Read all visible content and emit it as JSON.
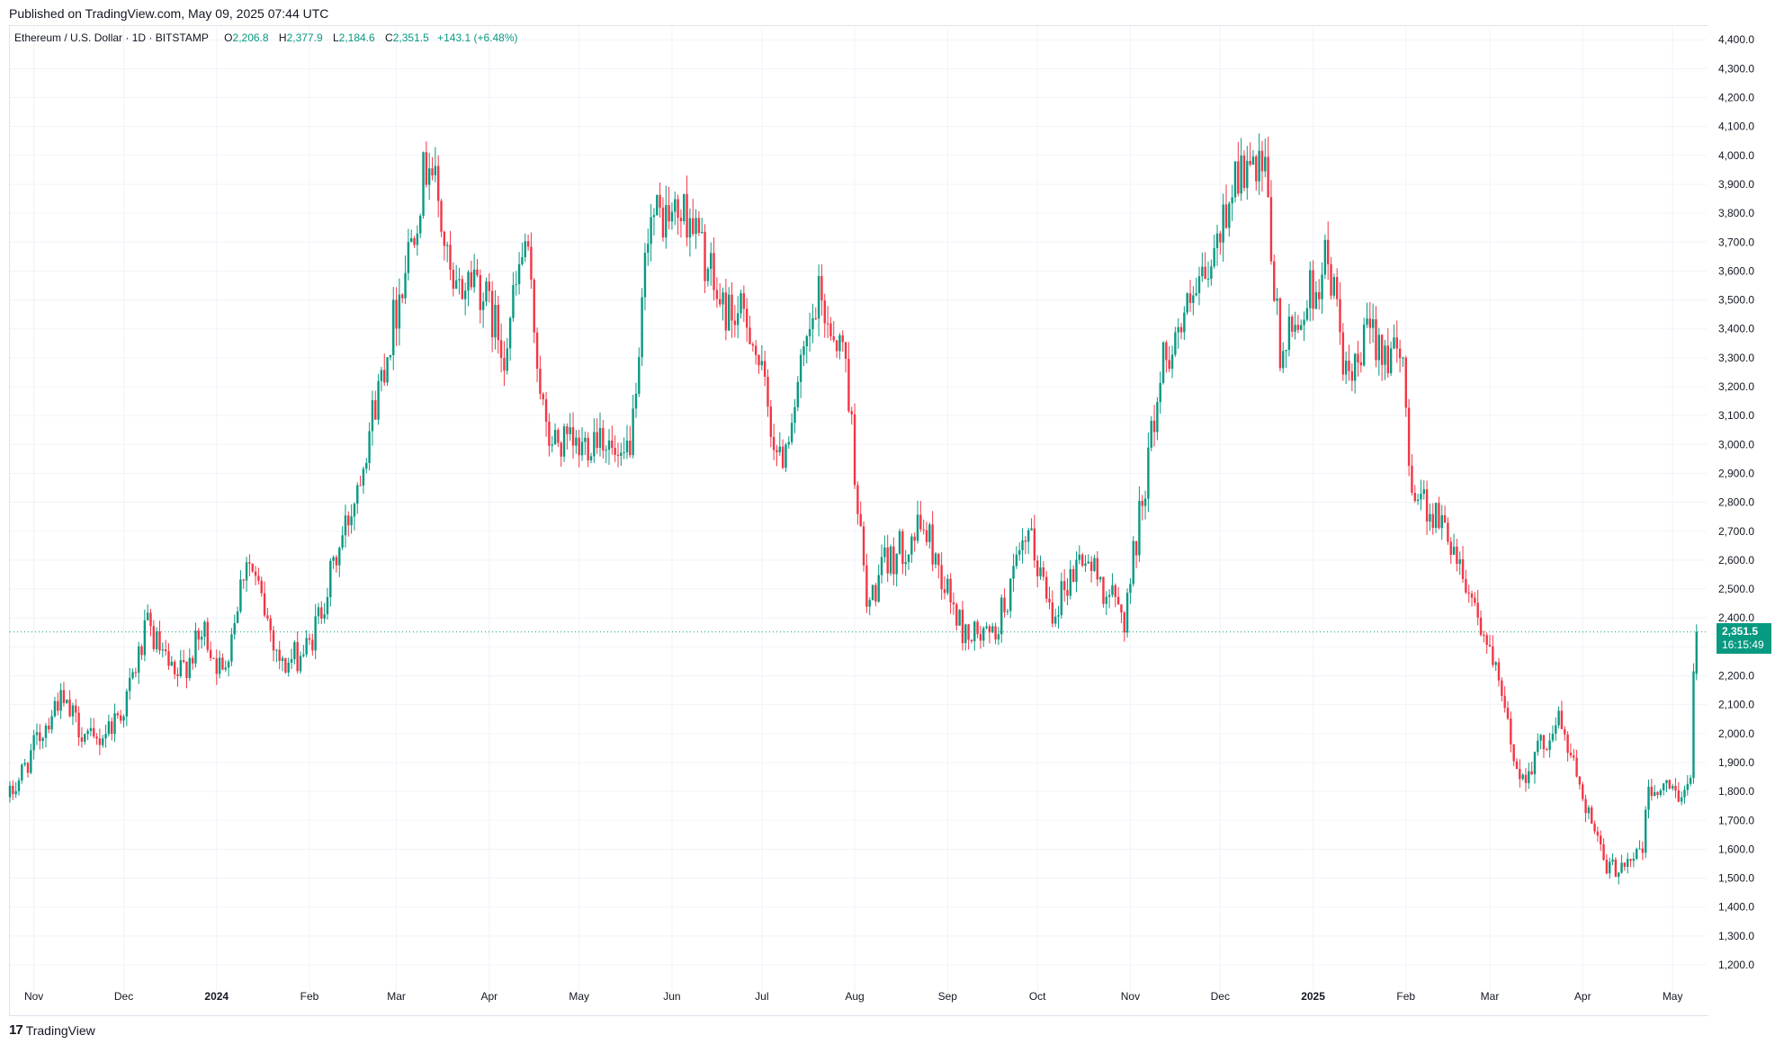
{
  "header": {
    "published": "Published on TradingView.com, May 09, 2025 07:44 UTC"
  },
  "legend": {
    "symbol": "Ethereum / U.S. Dollar · 1D · BITSTAMP",
    "open_label": "O",
    "open": "2,206.8",
    "high_label": "H",
    "high": "2,377.9",
    "low_label": "L",
    "low": "2,184.6",
    "close_label": "C",
    "close": "2,351.5",
    "change": "+143.1 (+6.48%)"
  },
  "price_badge": {
    "price": "2,351.5",
    "countdown": "16:15:49"
  },
  "footer": {
    "logo_mark": "17",
    "brand": "TradingView"
  },
  "colors": {
    "up": "#089981",
    "down": "#f23645",
    "grid": "#f0f3fa"
  },
  "chart_data": {
    "type": "candlestick",
    "title": "Ethereum / U.S. Dollar · 1D · BITSTAMP",
    "ylim": [
      1100,
      4450
    ],
    "y_ticks": [
      "1,200.0",
      "1,300.0",
      "1,400.0",
      "1,500.0",
      "1,600.0",
      "1,700.0",
      "1,800.0",
      "1,900.0",
      "2,000.0",
      "2,100.0",
      "2,200.0",
      "2,300.0",
      "2,400.0",
      "2,500.0",
      "2,600.0",
      "2,700.0",
      "2,800.0",
      "2,900.0",
      "3,000.0",
      "3,100.0",
      "3,200.0",
      "3,300.0",
      "3,400.0",
      "3,500.0",
      "3,600.0",
      "3,700.0",
      "3,800.0",
      "3,900.0",
      "4,000.0",
      "4,100.0",
      "4,200.0",
      "4,300.0",
      "4,400.0"
    ],
    "x_ticks": [
      {
        "label": "Nov",
        "date": "2023-11-01",
        "bold": false
      },
      {
        "label": "Dec",
        "date": "2023-12-01",
        "bold": false
      },
      {
        "label": "2024",
        "date": "2024-01-01",
        "bold": true
      },
      {
        "label": "Feb",
        "date": "2024-02-01",
        "bold": false
      },
      {
        "label": "Mar",
        "date": "2024-03-01",
        "bold": false
      },
      {
        "label": "Apr",
        "date": "2024-04-01",
        "bold": false
      },
      {
        "label": "May",
        "date": "2024-05-01",
        "bold": false
      },
      {
        "label": "Jun",
        "date": "2024-06-01",
        "bold": false
      },
      {
        "label": "Jul",
        "date": "2024-07-01",
        "bold": false
      },
      {
        "label": "Aug",
        "date": "2024-08-01",
        "bold": false
      },
      {
        "label": "Sep",
        "date": "2024-09-01",
        "bold": false
      },
      {
        "label": "Oct",
        "date": "2024-10-01",
        "bold": false
      },
      {
        "label": "Nov",
        "date": "2024-11-01",
        "bold": false
      },
      {
        "label": "Dec",
        "date": "2024-12-01",
        "bold": false
      },
      {
        "label": "2025",
        "date": "2025-01-01",
        "bold": true
      },
      {
        "label": "Feb",
        "date": "2025-02-01",
        "bold": false
      },
      {
        "label": "Mar",
        "date": "2025-03-01",
        "bold": false
      },
      {
        "label": "Apr",
        "date": "2025-04-01",
        "bold": false
      },
      {
        "label": "May",
        "date": "2025-05-01",
        "bold": false
      }
    ],
    "current_price": 2351.5,
    "series": [
      {
        "name": "ETH/USD",
        "approx_daily_close_path": [
          {
            "date": "2023-10-24",
            "close": 1780
          },
          {
            "date": "2023-11-09",
            "close": 2120
          },
          {
            "date": "2023-11-21",
            "close": 1960
          },
          {
            "date": "2023-12-01",
            "close": 2090
          },
          {
            "date": "2023-12-09",
            "close": 2370
          },
          {
            "date": "2023-12-18",
            "close": 2180
          },
          {
            "date": "2023-12-28",
            "close": 2350
          },
          {
            "date": "2024-01-03",
            "close": 2200
          },
          {
            "date": "2024-01-11",
            "close": 2620
          },
          {
            "date": "2024-01-23",
            "close": 2230
          },
          {
            "date": "2024-02-01",
            "close": 2300
          },
          {
            "date": "2024-02-15",
            "close": 2780
          },
          {
            "date": "2024-02-28",
            "close": 3380
          },
          {
            "date": "2024-03-12",
            "close": 4020
          },
          {
            "date": "2024-03-20",
            "close": 3500
          },
          {
            "date": "2024-03-27",
            "close": 3600
          },
          {
            "date": "2024-04-06",
            "close": 3330
          },
          {
            "date": "2024-04-13",
            "close": 3700
          },
          {
            "date": "2024-04-20",
            "close": 3020
          },
          {
            "date": "2024-05-01",
            "close": 2980
          },
          {
            "date": "2024-05-08",
            "close": 3060
          },
          {
            "date": "2024-05-15",
            "close": 2900
          },
          {
            "date": "2024-05-20",
            "close": 3100
          },
          {
            "date": "2024-05-24",
            "close": 3780
          },
          {
            "date": "2024-06-07",
            "close": 3800
          },
          {
            "date": "2024-06-17",
            "close": 3480
          },
          {
            "date": "2024-06-27",
            "close": 3420
          },
          {
            "date": "2024-07-07",
            "close": 2930
          },
          {
            "date": "2024-07-20",
            "close": 3500
          },
          {
            "date": "2024-07-29",
            "close": 3300
          },
          {
            "date": "2024-08-05",
            "close": 2430
          },
          {
            "date": "2024-08-11",
            "close": 2580
          },
          {
            "date": "2024-08-24",
            "close": 2720
          },
          {
            "date": "2024-09-06",
            "close": 2350
          },
          {
            "date": "2024-09-16",
            "close": 2330
          },
          {
            "date": "2024-09-28",
            "close": 2680
          },
          {
            "date": "2024-10-06",
            "close": 2430
          },
          {
            "date": "2024-10-16",
            "close": 2620
          },
          {
            "date": "2024-10-30",
            "close": 2400
          },
          {
            "date": "2024-11-12",
            "close": 3300
          },
          {
            "date": "2024-11-28",
            "close": 3600
          },
          {
            "date": "2024-12-06",
            "close": 3950
          },
          {
            "date": "2024-12-16",
            "close": 3920
          },
          {
            "date": "2024-12-21",
            "close": 3300
          },
          {
            "date": "2025-01-06",
            "close": 3650
          },
          {
            "date": "2025-01-13",
            "close": 3180
          },
          {
            "date": "2025-01-20",
            "close": 3400
          },
          {
            "date": "2025-01-31",
            "close": 3260
          },
          {
            "date": "2025-02-03",
            "close": 2860
          },
          {
            "date": "2025-02-16",
            "close": 2680
          },
          {
            "date": "2025-02-24",
            "close": 2450
          },
          {
            "date": "2025-03-04",
            "close": 2160
          },
          {
            "date": "2025-03-11",
            "close": 1840
          },
          {
            "date": "2025-03-24",
            "close": 2050
          },
          {
            "date": "2025-04-01",
            "close": 1800
          },
          {
            "date": "2025-04-09",
            "close": 1520
          },
          {
            "date": "2025-04-21",
            "close": 1600
          },
          {
            "date": "2025-04-23",
            "close": 1800
          },
          {
            "date": "2025-05-07",
            "close": 1810
          },
          {
            "date": "2025-05-08",
            "close": 2206.8
          },
          {
            "date": "2025-05-09",
            "close": 2351.5
          }
        ]
      }
    ]
  }
}
